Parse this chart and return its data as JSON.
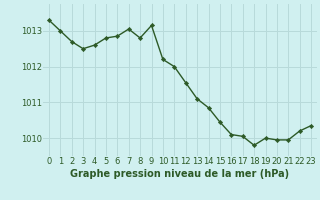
{
  "x": [
    0,
    1,
    2,
    3,
    4,
    5,
    6,
    7,
    8,
    9,
    10,
    11,
    12,
    13,
    14,
    15,
    16,
    17,
    18,
    19,
    20,
    21,
    22,
    23
  ],
  "y": [
    1013.3,
    1013.0,
    1012.7,
    1012.5,
    1012.6,
    1012.8,
    1012.85,
    1013.05,
    1012.8,
    1013.15,
    1012.2,
    1012.0,
    1011.55,
    1011.1,
    1010.85,
    1010.45,
    1010.1,
    1010.05,
    1009.8,
    1010.0,
    1009.95,
    1009.95,
    1010.2,
    1010.35
  ],
  "line_color": "#2d5a27",
  "marker": "D",
  "marker_size": 2.2,
  "linewidth": 1.0,
  "background_color": "#d0f0f0",
  "grid_color": "#b8dada",
  "xlabel": "Graphe pression niveau de la mer (hPa)",
  "xlabel_color": "#2d5a27",
  "xlabel_fontsize": 7,
  "tick_color": "#2d5a27",
  "tick_fontsize": 6,
  "ylim": [
    1009.5,
    1013.75
  ],
  "xlim": [
    -0.5,
    23.5
  ],
  "yticks": [
    1010,
    1011,
    1012,
    1013
  ],
  "xticks": [
    0,
    1,
    2,
    3,
    4,
    5,
    6,
    7,
    8,
    9,
    10,
    11,
    12,
    13,
    14,
    15,
    16,
    17,
    18,
    19,
    20,
    21,
    22,
    23
  ]
}
